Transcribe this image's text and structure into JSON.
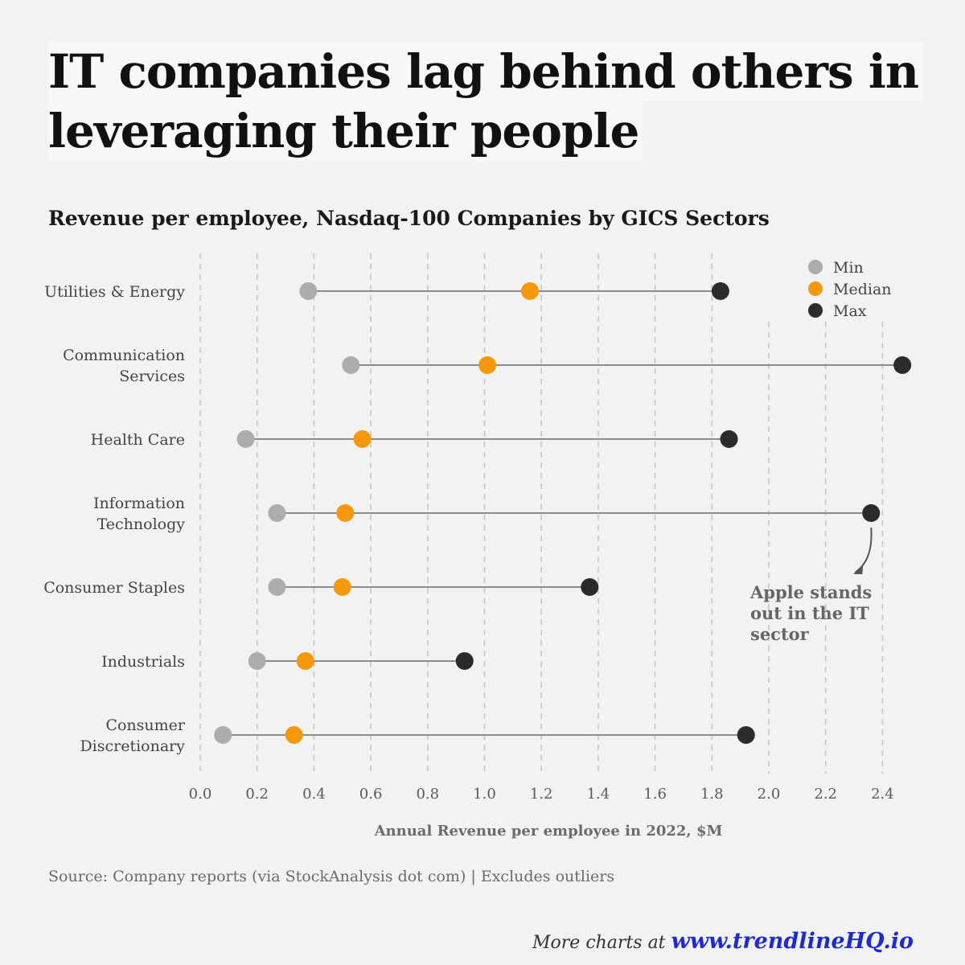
{
  "title_line1": "IT companies lag behind others in",
  "title_line2": "leveraging their people",
  "subtitle": "Revenue per employee, Nasdaq-100 Companies by GICS Sectors",
  "source": "Source: Company reports (via StockAnalysis dot com) | Excludes outliers",
  "footer": {
    "prefix": "More charts at ",
    "link": "www.trendlineHQ.io"
  },
  "colors": {
    "min": "#acacac",
    "median": "#f5980c",
    "max": "#2b2b2b",
    "line": "#8c8c8c",
    "grid": "#c4c4c4"
  },
  "chart_data": {
    "type": "scatter",
    "subtype": "dumbbell",
    "xlabel": "Annual Revenue per employee in 2022, $M",
    "xlim": [
      0.0,
      2.5
    ],
    "xticks": [
      "0.0",
      "0.2",
      "0.4",
      "0.6",
      "0.8",
      "1.0",
      "1.2",
      "1.4",
      "1.6",
      "1.8",
      "2.0",
      "2.2",
      "2.4"
    ],
    "grid": "vertical dashed",
    "legend_position": "top-right",
    "categories": [
      [
        "Utilities & Energy"
      ],
      [
        "Communication",
        "Services"
      ],
      [
        "Health Care"
      ],
      [
        "Information",
        "Technology"
      ],
      [
        "Consumer Staples"
      ],
      [
        "Industrials"
      ],
      [
        "Consumer",
        "Discretionary"
      ]
    ],
    "series": [
      {
        "name": "Min",
        "values": [
          0.38,
          0.53,
          0.16,
          0.27,
          0.27,
          0.2,
          0.08
        ]
      },
      {
        "name": "Median",
        "values": [
          1.16,
          1.01,
          0.57,
          0.51,
          0.5,
          0.37,
          0.33
        ]
      },
      {
        "name": "Max",
        "values": [
          1.83,
          2.47,
          1.86,
          2.36,
          1.37,
          0.93,
          1.92
        ]
      }
    ],
    "annotation": {
      "lines": [
        "Apple stands",
        "out in the IT",
        "sector"
      ],
      "category_index": 3,
      "series": "Max"
    }
  }
}
